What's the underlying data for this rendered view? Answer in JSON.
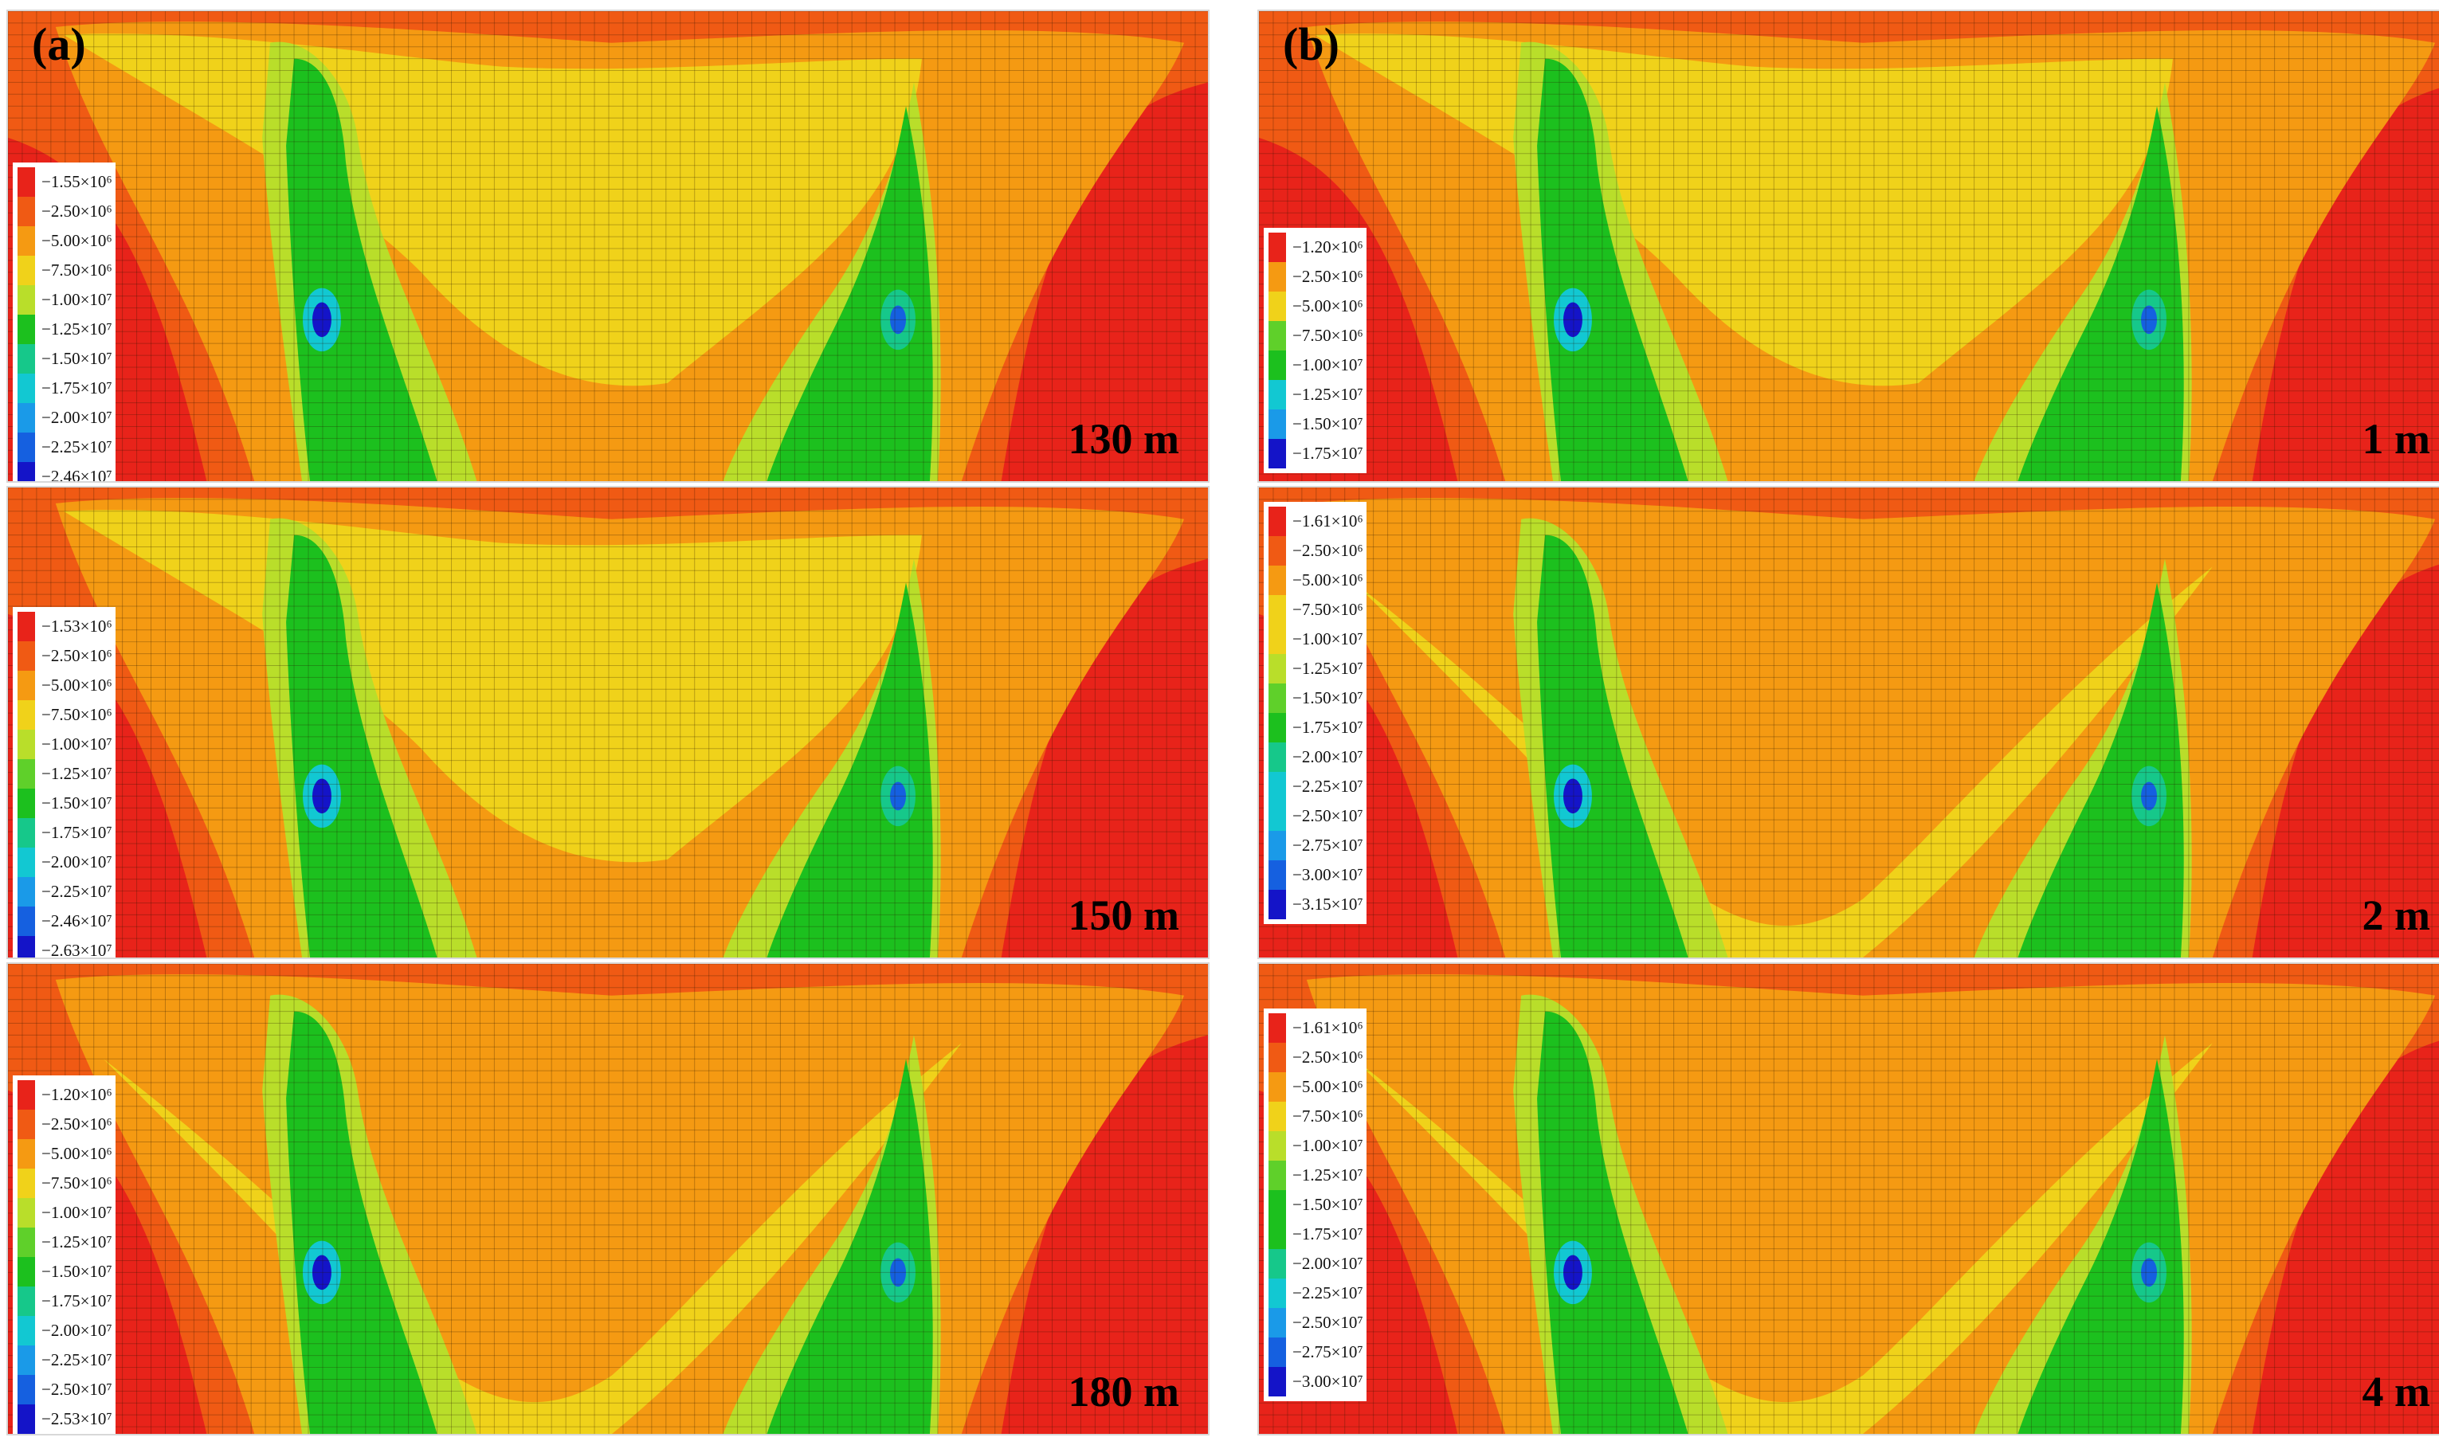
{
  "columns": [
    {
      "label": "(a)",
      "panels": [
        {
          "depth": "130 m",
          "legend": [
            "−1.55×10⁶",
            "−2.50×10⁶",
            "−5.00×10⁶",
            "−7.50×10⁶",
            "−1.00×10⁷",
            "−1.25×10⁷",
            "−1.50×10⁷",
            "−1.75×10⁷",
            "−2.00×10⁷",
            "−2.25×10⁷",
            "−2.46×10⁷"
          ]
        },
        {
          "depth": "150 m",
          "legend": [
            "−1.53×10⁶",
            "−2.50×10⁶",
            "−5.00×10⁶",
            "−7.50×10⁶",
            "−1.00×10⁷",
            "−1.25×10⁷",
            "−1.50×10⁷",
            "−1.75×10⁷",
            "−2.00×10⁷",
            "−2.25×10⁷",
            "−2.46×10⁷",
            "−2.63×10⁷"
          ]
        },
        {
          "depth": "180 m",
          "legend": [
            "−1.20×10⁶",
            "−2.50×10⁶",
            "−5.00×10⁶",
            "−7.50×10⁶",
            "−1.00×10⁷",
            "−1.25×10⁷",
            "−1.50×10⁷",
            "−1.75×10⁷",
            "−2.00×10⁷",
            "−2.25×10⁷",
            "−2.50×10⁷",
            "−2.53×10⁷"
          ]
        }
      ]
    },
    {
      "label": "(b)",
      "panels": [
        {
          "depth": "1 m",
          "legend": [
            "−1.20×10⁶",
            "−2.50×10⁶",
            "−5.00×10⁶",
            "−7.50×10⁶",
            "−1.00×10⁷",
            "−1.25×10⁷",
            "−1.50×10⁷",
            "−1.75×10⁷"
          ]
        },
        {
          "depth": "2 m",
          "legend": [
            "−1.61×10⁶",
            "−2.50×10⁶",
            "−5.00×10⁶",
            "−7.50×10⁶",
            "−1.00×10⁷",
            "−1.25×10⁷",
            "−1.50×10⁷",
            "−1.75×10⁷",
            "−2.00×10⁷",
            "−2.25×10⁷",
            "−2.50×10⁷",
            "−2.75×10⁷",
            "−3.00×10⁷",
            "−3.15×10⁷"
          ]
        },
        {
          "depth": "4 m",
          "legend": [
            "−1.61×10⁶",
            "−2.50×10⁶",
            "−5.00×10⁶",
            "−7.50×10⁶",
            "−1.00×10⁷",
            "−1.25×10⁷",
            "−1.50×10⁷",
            "−1.75×10⁷",
            "−2.00×10⁷",
            "−2.25×10⁷",
            "−2.50×10⁷",
            "−2.75×10⁷",
            "−3.00×10⁷"
          ]
        }
      ]
    }
  ],
  "colors": {
    "red": "#e8231a",
    "dark_orange": "#f05a14",
    "orange": "#f59a12",
    "yellow": "#f0d21a",
    "yellow_green": "#b9de2a",
    "green": "#5fd02a",
    "deep_green": "#1cc01e",
    "teal": "#16c88a",
    "cyan": "#12c8d2",
    "light_blue": "#1a9ae8",
    "blue": "#1560e0",
    "deep_blue": "#1414c8"
  }
}
